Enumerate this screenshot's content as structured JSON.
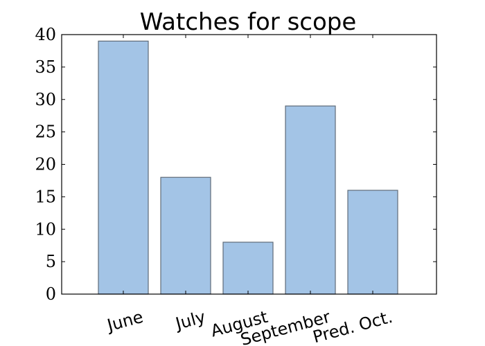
{
  "chart_data": {
    "type": "bar",
    "title": "Watches for scope",
    "categories": [
      "June",
      "July",
      "August",
      "September",
      "Pred. Oct."
    ],
    "values": [
      39,
      18,
      8,
      29,
      16
    ],
    "xlabel": "",
    "ylabel": "",
    "ylim": [
      0,
      40
    ],
    "yticks": [
      0,
      5,
      10,
      15,
      20,
      25,
      30,
      35,
      40
    ],
    "bar_color": "#a3c4e6",
    "grid": false,
    "legend": "none"
  }
}
